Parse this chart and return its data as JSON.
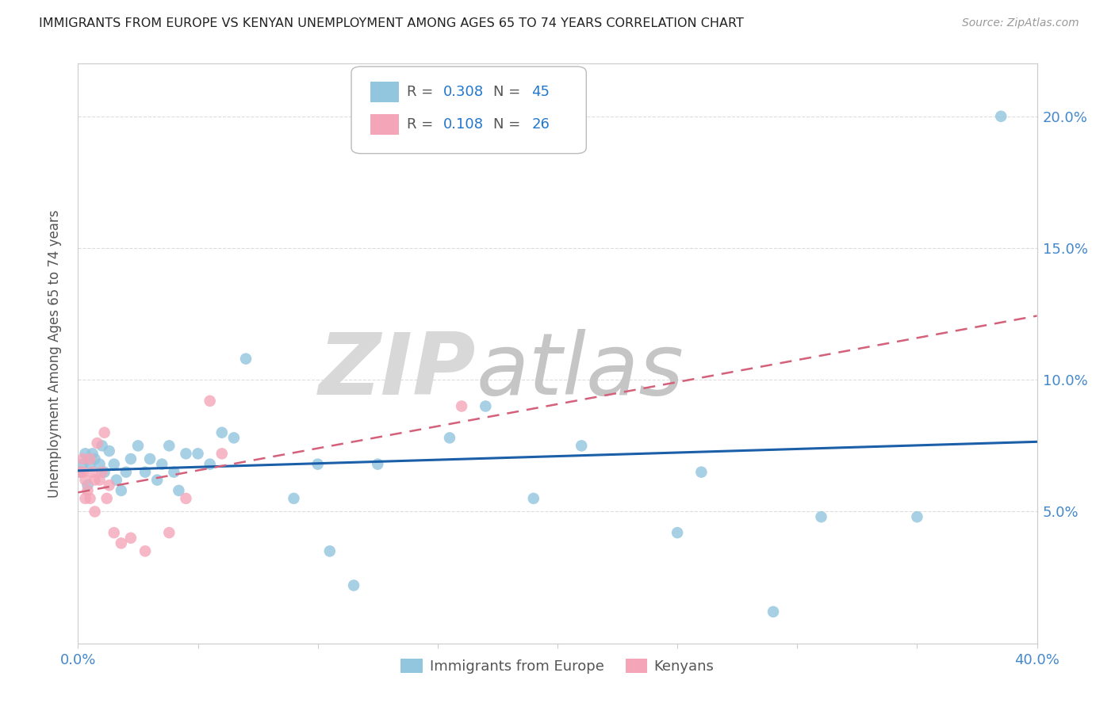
{
  "title": "IMMIGRANTS FROM EUROPE VS KENYAN UNEMPLOYMENT AMONG AGES 65 TO 74 YEARS CORRELATION CHART",
  "source": "Source: ZipAtlas.com",
  "ylabel": "Unemployment Among Ages 65 to 74 years",
  "xlim": [
    0,
    0.4
  ],
  "ylim": [
    0,
    0.22
  ],
  "xtick_positions": [
    0.0,
    0.05,
    0.1,
    0.15,
    0.2,
    0.25,
    0.3,
    0.35,
    0.4
  ],
  "ytick_positions": [
    0.0,
    0.05,
    0.1,
    0.15,
    0.2
  ],
  "color_blue": "#92c5de",
  "color_pink": "#f4a6b8",
  "line_blue": "#1a5fa8",
  "line_pink": "#d4607a",
  "r1": "0.308",
  "n1": "45",
  "r2": "0.108",
  "n2": "26",
  "blue_x": [
    0.001,
    0.002,
    0.003,
    0.004,
    0.005,
    0.006,
    0.007,
    0.009,
    0.01,
    0.011,
    0.013,
    0.015,
    0.016,
    0.018,
    0.02,
    0.022,
    0.025,
    0.028,
    0.03,
    0.033,
    0.035,
    0.038,
    0.04,
    0.042,
    0.045,
    0.05,
    0.055,
    0.06,
    0.065,
    0.07,
    0.09,
    0.1,
    0.105,
    0.115,
    0.125,
    0.155,
    0.17,
    0.19,
    0.21,
    0.25,
    0.26,
    0.29,
    0.31,
    0.35,
    0.385
  ],
  "blue_y": [
    0.065,
    0.068,
    0.072,
    0.06,
    0.068,
    0.072,
    0.07,
    0.068,
    0.075,
    0.065,
    0.073,
    0.068,
    0.062,
    0.058,
    0.065,
    0.07,
    0.075,
    0.065,
    0.07,
    0.062,
    0.068,
    0.075,
    0.065,
    0.058,
    0.072,
    0.072,
    0.068,
    0.08,
    0.078,
    0.108,
    0.055,
    0.068,
    0.035,
    0.022,
    0.068,
    0.078,
    0.09,
    0.055,
    0.075,
    0.042,
    0.065,
    0.012,
    0.048,
    0.048,
    0.2
  ],
  "pink_x": [
    0.001,
    0.002,
    0.002,
    0.003,
    0.003,
    0.004,
    0.005,
    0.005,
    0.006,
    0.007,
    0.007,
    0.008,
    0.009,
    0.01,
    0.011,
    0.012,
    0.013,
    0.015,
    0.018,
    0.022,
    0.028,
    0.038,
    0.045,
    0.055,
    0.06,
    0.16
  ],
  "pink_y": [
    0.065,
    0.065,
    0.07,
    0.062,
    0.055,
    0.058,
    0.07,
    0.055,
    0.065,
    0.062,
    0.05,
    0.076,
    0.062,
    0.065,
    0.08,
    0.055,
    0.06,
    0.042,
    0.038,
    0.04,
    0.035,
    0.042,
    0.055,
    0.092,
    0.072,
    0.09
  ],
  "background_color": "#ffffff",
  "grid_color": "#dddddd",
  "blue_line_start_x": 0.0,
  "blue_line_end_x": 0.4,
  "pink_line_start_x": 0.0,
  "pink_line_end_x": 0.4
}
